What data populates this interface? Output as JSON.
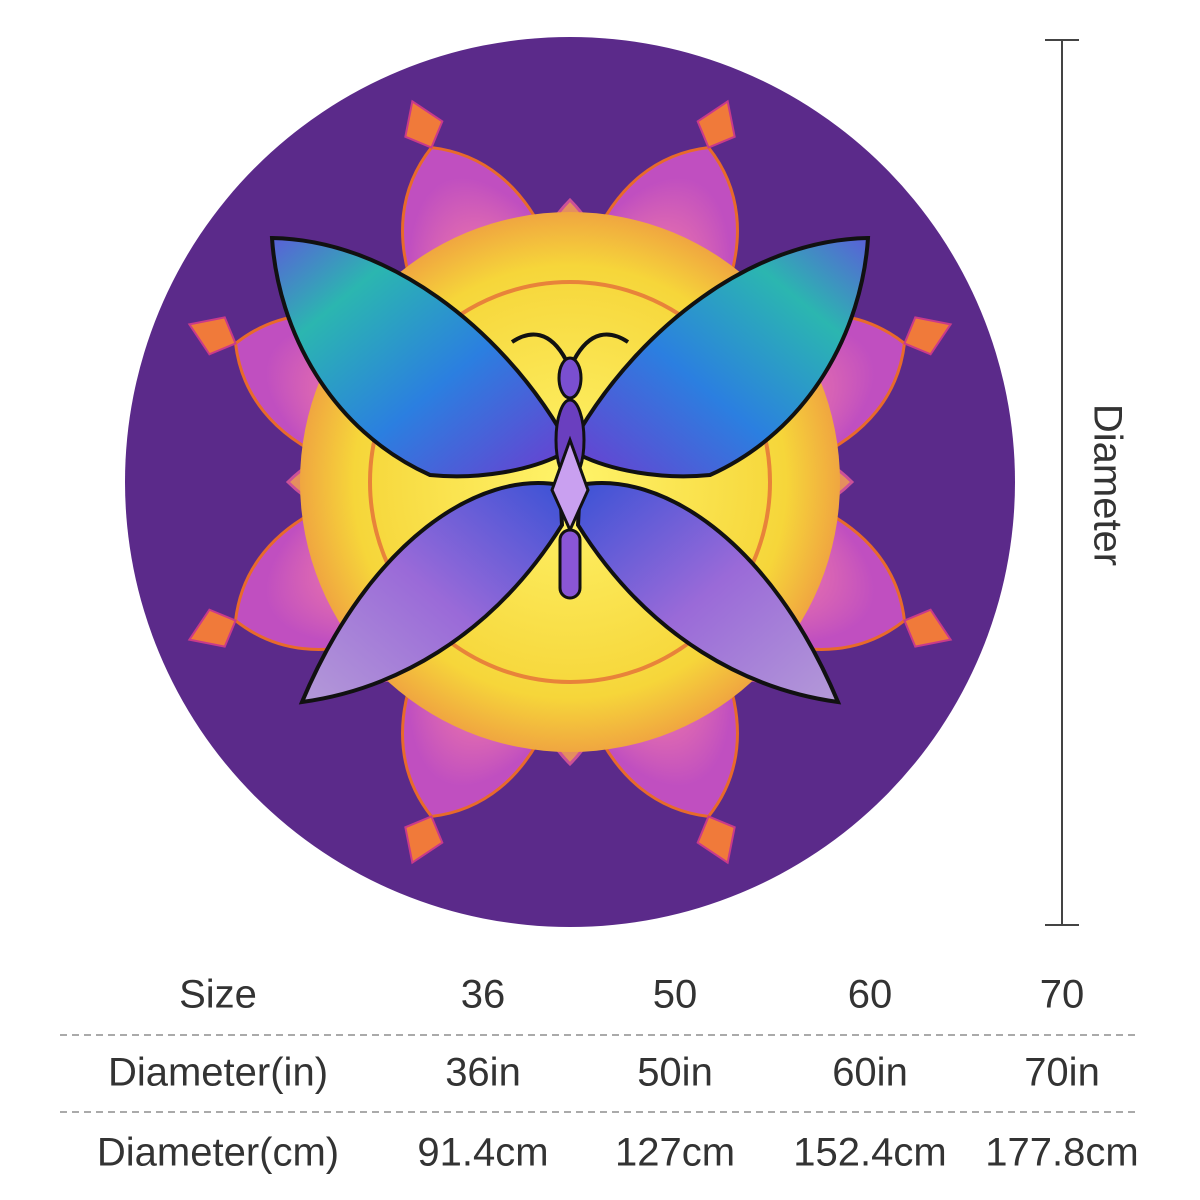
{
  "dimension_label": "Diameter",
  "table": {
    "header": [
      "Size",
      "36",
      "50",
      "60",
      "70"
    ],
    "rows": [
      [
        "Diameter(in)",
        "36in",
        "50in",
        "60in",
        "70in"
      ],
      [
        "Diameter(cm)",
        "91.4cm",
        "127cm",
        "152.4cm",
        "177.8cm"
      ]
    ]
  }
}
